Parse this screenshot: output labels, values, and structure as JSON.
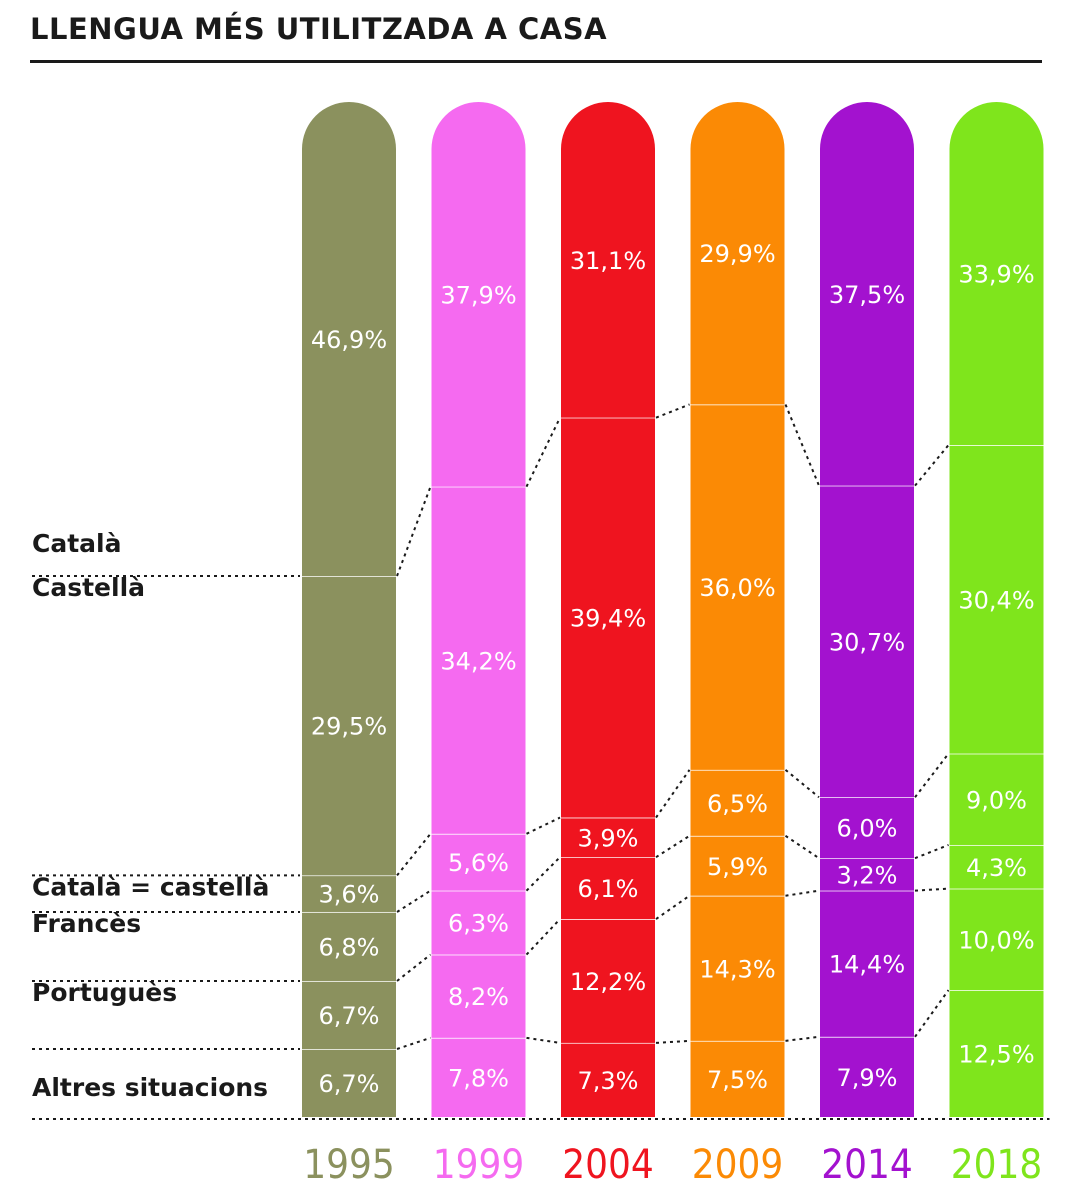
{
  "title": "LLENGUA MÉS UTILITZADA A CASA",
  "chart_data": {
    "type": "bar",
    "stacked": true,
    "title": "LLENGUA MÉS UTILITZADA A CASA",
    "ylim": [
      0,
      100
    ],
    "unit": "%",
    "categories": [
      "1995",
      "1999",
      "2004",
      "2009",
      "2014",
      "2018"
    ],
    "colors": [
      "#8b915e",
      "#f56af0",
      "#ef141f",
      "#fb8a05",
      "#a312cf",
      "#7fe51c"
    ],
    "series": [
      {
        "name": "Altres situacions",
        "values": [
          6.7,
          7.8,
          7.3,
          7.5,
          7.9,
          12.5
        ],
        "labels": [
          "6,7%",
          "7,8%",
          "7,3%",
          "7,5%",
          "7,9%",
          "12,5%"
        ]
      },
      {
        "name": "Portuguès",
        "values": [
          6.7,
          8.2,
          12.2,
          14.3,
          14.4,
          10.0
        ],
        "labels": [
          "6,7%",
          "8,2%",
          "12,2%",
          "14,3%",
          "14,4%",
          "10,0%"
        ]
      },
      {
        "name": "Francès",
        "values": [
          6.8,
          6.3,
          6.1,
          5.9,
          3.2,
          4.3
        ],
        "labels": [
          "6,8%",
          "6,3%",
          "6,1%",
          "5,9%",
          "3,2%",
          "4,3%"
        ]
      },
      {
        "name": "Català = castellà",
        "values": [
          3.6,
          5.6,
          3.9,
          6.5,
          6.0,
          9.0
        ],
        "labels": [
          "3,6%",
          "5,6%",
          "3,9%",
          "6,5%",
          "6,0%",
          "9,0%"
        ]
      },
      {
        "name": "Castellà",
        "values": [
          29.5,
          34.2,
          39.4,
          36.0,
          30.7,
          30.4
        ],
        "labels": [
          "29,5%",
          "34,2%",
          "39,4%",
          "36,0%",
          "30,7%",
          "30,4%"
        ]
      },
      {
        "name": "Català",
        "values": [
          46.9,
          37.9,
          31.1,
          29.9,
          37.5,
          33.9
        ],
        "labels": [
          "46,9%",
          "37,9%",
          "31,1%",
          "29,9%",
          "37,5%",
          "33,9%"
        ]
      }
    ]
  }
}
